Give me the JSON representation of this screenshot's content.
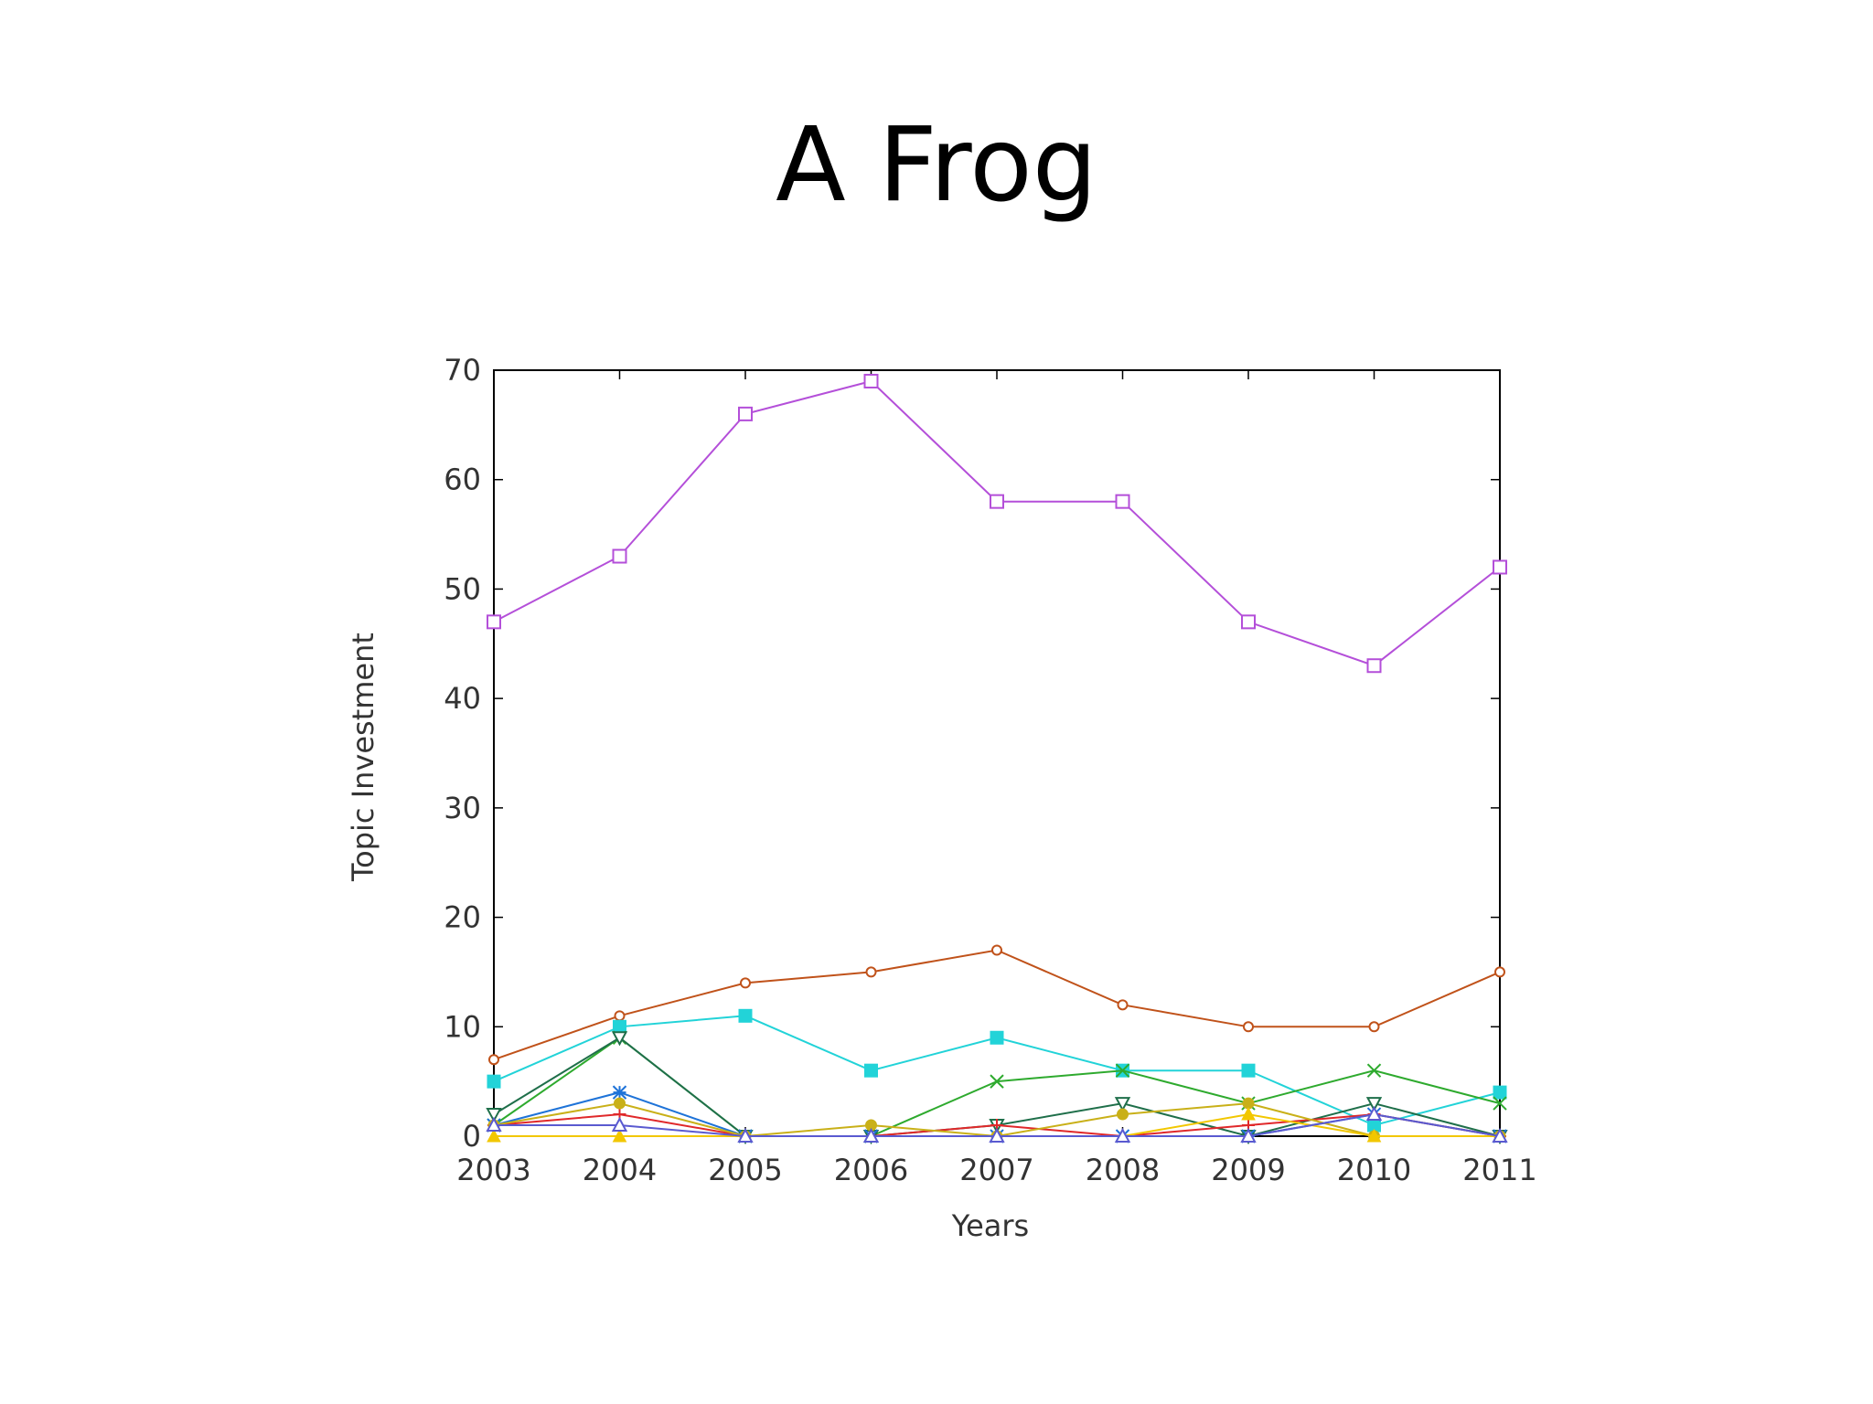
{
  "slide": {
    "title": "A Frog"
  },
  "chart_data": {
    "type": "line",
    "title": "",
    "xlabel": "Years",
    "ylabel": "Topic Investment",
    "x": [
      2003,
      2004,
      2005,
      2006,
      2007,
      2008,
      2009,
      2010,
      2011
    ],
    "xlim": [
      2003,
      2011
    ],
    "ylim": [
      0,
      70
    ],
    "yticks": [
      0,
      10,
      20,
      30,
      40,
      50,
      60,
      70
    ],
    "grid": false,
    "series": [
      {
        "values": [
          47,
          53,
          66,
          69,
          58,
          58,
          47,
          43,
          52
        ],
        "color": "#b44fd9",
        "marker": "square-open"
      },
      {
        "values": [
          7,
          11,
          14,
          15,
          17,
          12,
          10,
          10,
          15
        ],
        "color": "#c0521a",
        "marker": "circle-open"
      },
      {
        "values": [
          5,
          10,
          11,
          6,
          9,
          6,
          6,
          1,
          4
        ],
        "color": "#22d3d8",
        "marker": "square-filled"
      },
      {
        "values": [
          1,
          9,
          0,
          0,
          5,
          6,
          3,
          6,
          3
        ],
        "color": "#2eaa2e",
        "marker": "x"
      },
      {
        "values": [
          2,
          9,
          0,
          0,
          1,
          3,
          0,
          3,
          0
        ],
        "color": "#1f6f4a",
        "marker": "triangle-down-open"
      },
      {
        "values": [
          1,
          4,
          0,
          0,
          0,
          0,
          0,
          2,
          0
        ],
        "color": "#1e73d8",
        "marker": "star"
      },
      {
        "values": [
          1,
          2,
          0,
          0,
          1,
          0,
          1,
          2,
          0
        ],
        "color": "#e0282a",
        "marker": "plus"
      },
      {
        "values": [
          1,
          3,
          0,
          1,
          0,
          2,
          3,
          0,
          0
        ],
        "color": "#c9b018",
        "marker": "circle-filled"
      },
      {
        "values": [
          0,
          0,
          0,
          0,
          0,
          0,
          2,
          0,
          0
        ],
        "color": "#f2c700",
        "marker": "triangle-filled"
      },
      {
        "values": [
          1,
          1,
          0,
          0,
          0,
          0,
          0,
          2,
          0
        ],
        "color": "#5a5ad0",
        "marker": "triangle-open"
      }
    ]
  }
}
